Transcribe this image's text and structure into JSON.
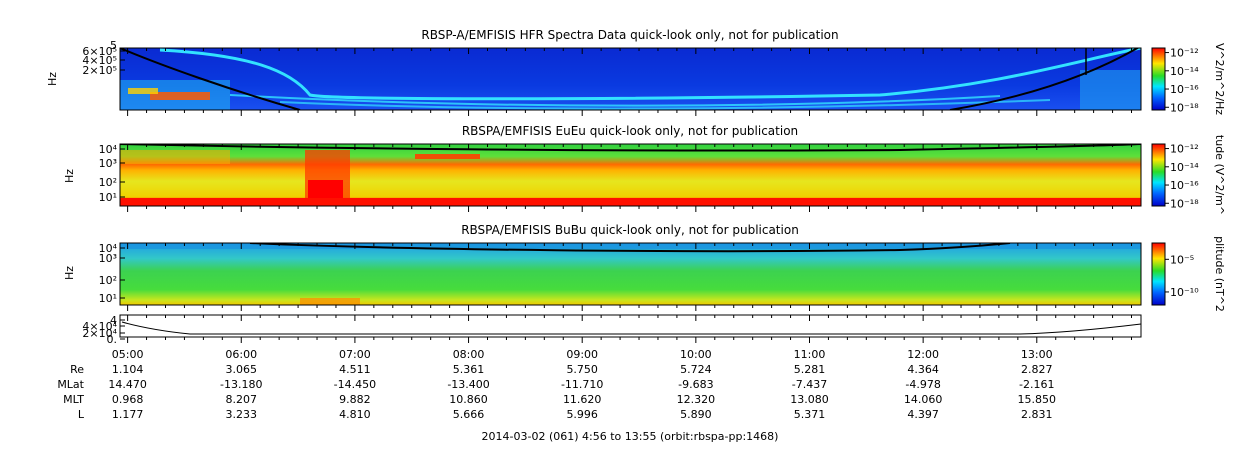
{
  "chart_data": [
    {
      "type": "heatmap",
      "title": "RBSP-A/EMFISIS  HFR Spectra Data quick-look only, not for publication",
      "ylabel": "Hz",
      "ytick_labels": [
        "6×10⁵",
        "4×10⁵",
        "2×10⁵"
      ],
      "ytick_top": "5",
      "colorbar_label": "V^2/m^2/Hz",
      "colorbar_ticks": [
        "10⁻¹²",
        "10⁻¹⁴",
        "10⁻¹⁶",
        "10⁻¹⁸"
      ],
      "colorbar_exponents": [
        -12,
        -14,
        -16,
        -18
      ]
    },
    {
      "type": "heatmap",
      "title": "RBSPA/EMFISIS  EuEu quick-look only, not for publication",
      "ylabel": "Hz",
      "ytick_labels": [
        "10⁴",
        "10³",
        "10²",
        "10¹"
      ],
      "colorbar_label": "tude (V^2/m^",
      "colorbar_ticks": [
        "10⁻¹²",
        "10⁻¹⁴",
        "10⁻¹⁶",
        "10⁻¹⁸"
      ],
      "colorbar_exponents": [
        -12,
        -14,
        -16,
        -18
      ]
    },
    {
      "type": "heatmap",
      "title": "RBSPA/EMFISIS  BuBu quick-look only, not for publication",
      "ylabel": "Hz",
      "ytick_labels": [
        "10⁴",
        "10³",
        "10²",
        "10¹"
      ],
      "colorbar_label": "plitude (nT^2",
      "colorbar_ticks": [
        "10⁻⁵",
        "10⁻¹⁰"
      ],
      "colorbar_exponents": [
        -5,
        -10
      ]
    },
    {
      "type": "line",
      "title": "",
      "ytick_labels": [
        "4",
        "4×10⁴",
        "2×10⁴",
        "0."
      ]
    }
  ],
  "time_axis": {
    "labels": [
      "05:00",
      "06:00",
      "07:00",
      "08:00",
      "09:00",
      "10:00",
      "11:00",
      "12:00",
      "13:00"
    ],
    "start_hour": 4.933,
    "end_hour": 13.917
  },
  "ephemeris": [
    {
      "name": "Re",
      "values": [
        "1.104",
        "3.065",
        "4.511",
        "5.361",
        "5.750",
        "5.724",
        "5.281",
        "4.364",
        "2.827"
      ]
    },
    {
      "name": "MLat",
      "values": [
        "14.470",
        "-13.180",
        "-14.450",
        "-13.400",
        "-11.710",
        "-9.683",
        "-7.437",
        "-4.978",
        "-2.161"
      ]
    },
    {
      "name": "MLT",
      "values": [
        "0.968",
        "8.207",
        "9.882",
        "10.860",
        "11.620",
        "12.320",
        "13.080",
        "14.060",
        "15.850"
      ]
    },
    {
      "name": "L",
      "values": [
        "1.177",
        "3.233",
        "4.810",
        "5.666",
        "5.996",
        "5.890",
        "5.371",
        "4.397",
        "2.831"
      ]
    }
  ],
  "footer": "2014-03-02 (061) 4:56 to 13:55 (orbit:rbspa-pp:1468)",
  "colors": {
    "low": "#0000b4",
    "mid_low": "#00c8ff",
    "mid": "#28dc3c",
    "mid_high": "#ffd200",
    "high": "#ff0000"
  }
}
